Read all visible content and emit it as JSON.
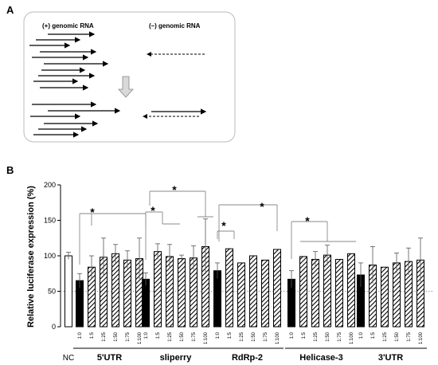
{
  "panel_a": {
    "letter": "A",
    "plus_label": "(+) genomic RNA",
    "minus_label": "(–) genomic RNA"
  },
  "panel_b": {
    "letter": "B"
  },
  "chart_data": {
    "type": "bar",
    "title": "",
    "ylabel": "Relative luciferase expression (%)",
    "ylim": [
      0,
      200
    ],
    "yticks": [
      0,
      50,
      100,
      150,
      200
    ],
    "reference_line": 50,
    "control": {
      "label": "NC",
      "value": 100,
      "error": 5
    },
    "groups": [
      {
        "name": "5'UTR",
        "ratios": [
          "1:0",
          "1:5",
          "1:25",
          "1:50",
          "1:75",
          "1:100"
        ],
        "values": [
          65,
          84,
          98,
          103,
          94,
          96
        ],
        "errors": [
          10,
          16,
          27,
          13,
          13,
          29
        ]
      },
      {
        "name": "sliperry",
        "ratios": [
          "1:0",
          "1:5",
          "1:25",
          "1:50",
          "1:75",
          "1:100"
        ],
        "values": [
          67,
          106,
          99,
          96,
          97,
          113
        ],
        "errors": [
          9,
          11,
          17,
          5,
          17,
          39
        ]
      },
      {
        "name": "RdRp-2",
        "ratios": [
          "1:0",
          "1:5",
          "1:25",
          "1:50",
          "1:75",
          "1:100"
        ],
        "values": [
          79,
          110,
          90,
          100,
          94,
          109
        ],
        "errors": [
          11,
          0,
          0,
          0,
          0,
          0
        ]
      },
      {
        "name": "Helicase-3",
        "ratios": [
          "1:0",
          "1:5",
          "1:25",
          "1:50",
          "1:75",
          "1:100"
        ],
        "values": [
          67,
          99,
          95,
          101,
          95,
          103
        ],
        "errors": [
          12,
          0,
          11,
          14,
          0,
          0
        ]
      },
      {
        "name": "3'UTR",
        "ratios": [
          "1:0",
          "1:5",
          "1:25",
          "1:50",
          "1:75",
          "1:100"
        ],
        "values": [
          73,
          87,
          84,
          90,
          92,
          94
        ],
        "errors": [
          17,
          26,
          0,
          14,
          19,
          31
        ]
      }
    ],
    "significance": [
      {
        "label": "*"
      },
      {
        "label": "*"
      },
      {
        "label": "*"
      },
      {
        "label": "*"
      },
      {
        "label": "*"
      },
      {
        "label": "*"
      }
    ],
    "colors": {
      "nc": "#ffffff",
      "first_bar": "#000000",
      "hatched": "#000000"
    }
  }
}
